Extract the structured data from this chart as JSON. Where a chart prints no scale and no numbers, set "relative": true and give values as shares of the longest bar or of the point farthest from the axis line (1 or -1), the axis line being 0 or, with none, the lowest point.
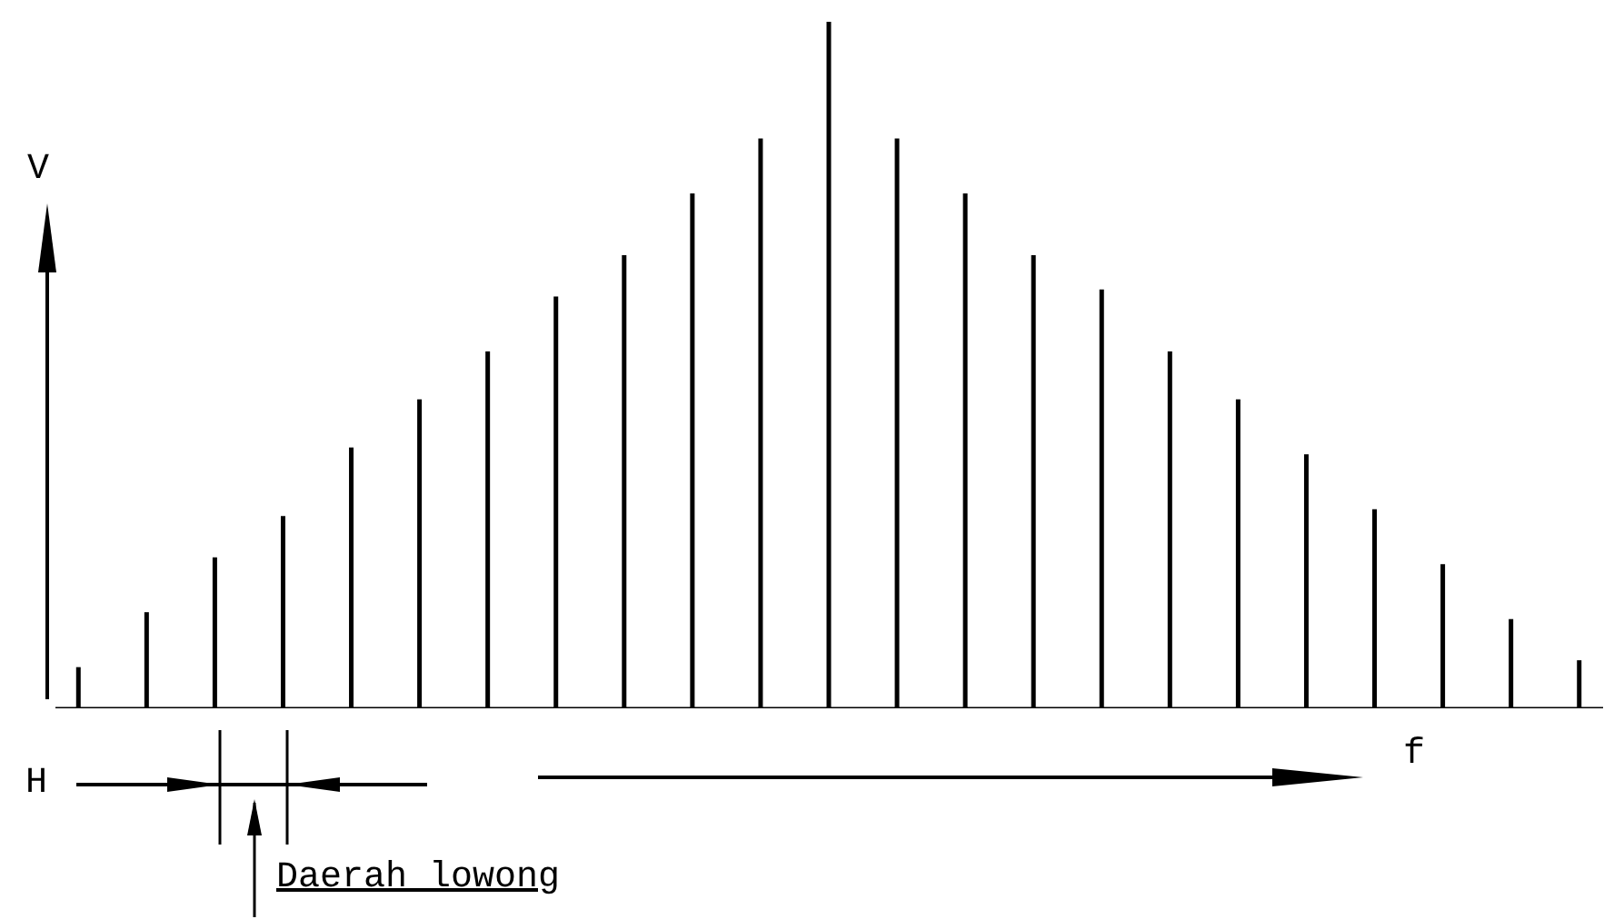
{
  "chart_data": {
    "type": "bar",
    "relative": true,
    "xlabel": "f",
    "ylabel": "V",
    "color": "#000000",
    "categories": [
      null,
      null,
      null,
      null,
      null,
      null,
      null,
      null,
      null,
      null,
      null,
      null,
      null,
      null,
      null,
      null,
      null,
      null,
      null,
      null,
      null,
      null,
      null
    ],
    "values": [
      0.06,
      0.14,
      0.22,
      0.28,
      0.38,
      0.45,
      0.52,
      0.6,
      0.66,
      0.75,
      0.83,
      1,
      0.83,
      0.75,
      0.66,
      0.61,
      0.52,
      0.45,
      0.37,
      0.29,
      0.21,
      0.13,
      0.07
    ],
    "annotations": [
      "H",
      "Daerah lowong"
    ]
  }
}
